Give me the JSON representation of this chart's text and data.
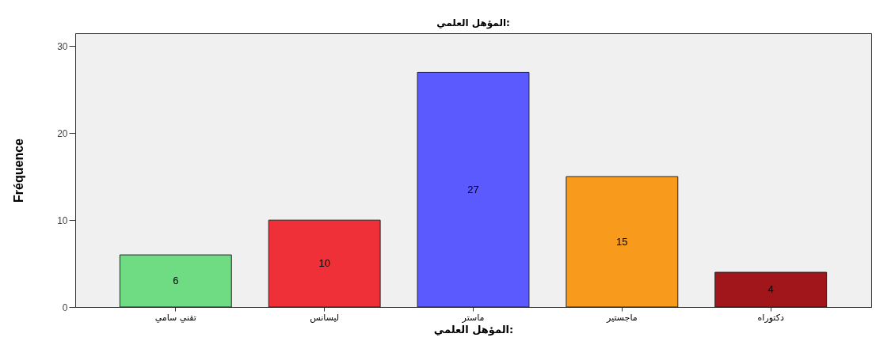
{
  "chart_data": {
    "type": "bar",
    "title": "المؤهل العلمي:",
    "xlabel": "المؤهل العلمي:",
    "ylabel": "Fréquence",
    "categories": [
      "تقني سامي",
      "ليسانس",
      "ماستر",
      "ماجستير",
      "دكتوراه"
    ],
    "values": [
      6,
      10,
      27,
      15,
      4
    ],
    "colors": [
      "#6fdc84",
      "#ef3038",
      "#5a5aff",
      "#f89a1c",
      "#a0161a"
    ],
    "ylim": [
      0,
      31.5
    ],
    "yticks": [
      0,
      10,
      20,
      30
    ],
    "grid": false,
    "data_labels": true
  }
}
